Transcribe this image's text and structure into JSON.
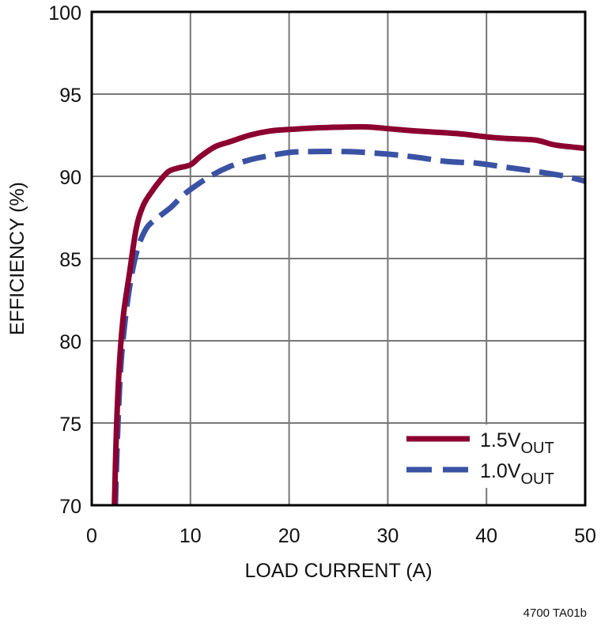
{
  "chart_data": {
    "type": "line",
    "title": "",
    "xlabel": "LOAD CURRENT (A)",
    "ylabel": "EFFICIENCY (%)",
    "xlim": [
      0,
      50
    ],
    "ylim": [
      70,
      100
    ],
    "x_ticks": [
      0,
      10,
      20,
      30,
      40,
      50
    ],
    "y_ticks": [
      70,
      75,
      80,
      85,
      90,
      95,
      100
    ],
    "grid": true,
    "legend_position": "lower right",
    "series": [
      {
        "name": "1.5V_OUT",
        "label_main": "1.5V",
        "label_sub": "OUT",
        "color": "#8b0030",
        "style": "solid",
        "x": [
          2.3,
          2.5,
          2.8,
          3.2,
          3.8,
          4.5,
          5.2,
          6.0,
          7.0,
          7.8,
          8.7,
          10.0,
          11.0,
          12.5,
          14.0,
          16.0,
          18.0,
          20.0,
          23.0,
          26.0,
          28.0,
          30.0,
          33.0,
          37.0,
          40.0,
          42.0,
          45.0,
          47.0,
          50.0
        ],
        "y": [
          70.0,
          74.5,
          78.5,
          81.5,
          84.0,
          86.8,
          88.2,
          89.0,
          89.8,
          90.3,
          90.5,
          90.7,
          91.2,
          91.8,
          92.1,
          92.5,
          92.75,
          92.85,
          92.95,
          93.0,
          93.0,
          92.9,
          92.75,
          92.6,
          92.4,
          92.3,
          92.2,
          91.9,
          91.7
        ]
      },
      {
        "name": "1.0V_OUT",
        "label_main": "1.0V",
        "label_sub": "OUT",
        "color": "#3a52a4",
        "style": "dashed",
        "x": [
          2.4,
          2.6,
          2.9,
          3.3,
          3.9,
          4.6,
          5.5,
          6.5,
          8.0,
          9.0,
          10.0,
          12.0,
          14.0,
          16.0,
          18.0,
          20.0,
          22.0,
          26.0,
          30.0,
          33.0,
          36.0,
          39.0,
          42.0,
          45.0,
          48.0,
          50.0
        ],
        "y": [
          70.0,
          74.0,
          78.0,
          80.8,
          83.5,
          85.5,
          86.8,
          87.4,
          88.1,
          88.7,
          89.2,
          90.0,
          90.6,
          91.0,
          91.25,
          91.45,
          91.5,
          91.5,
          91.35,
          91.15,
          90.9,
          90.8,
          90.55,
          90.3,
          90.0,
          89.7
        ]
      }
    ]
  },
  "footnote": "4700 TA01b"
}
